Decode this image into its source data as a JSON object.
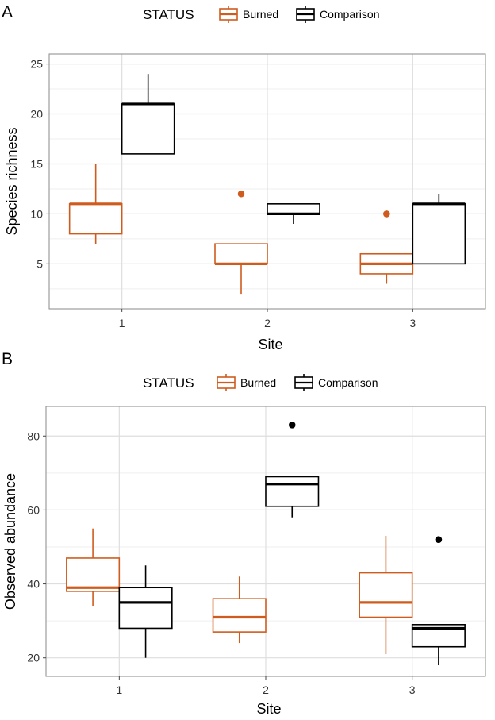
{
  "colors": {
    "burned": "#cf5c1e",
    "comparison": "#000000",
    "grid_major": "#dedede",
    "grid_minor": "#efefef",
    "border": "#8a8a8a"
  },
  "chart_data": [
    {
      "type": "box",
      "panel_label": "A",
      "legend_title": "STATUS",
      "legend_entries": [
        "Burned",
        "Comparison"
      ],
      "legend_position": "top",
      "xlabel": "Site",
      "ylabel": "Species richness",
      "categories": [
        "1",
        "2",
        "3"
      ],
      "ylim": [
        0.5,
        26
      ],
      "yticks": [
        "5",
        "10",
        "15",
        "20",
        "25"
      ],
      "series": [
        {
          "name": "Burned",
          "boxes": [
            {
              "min": 7,
              "q1": 8,
              "median": 11,
              "q3": 11,
              "max": 15,
              "outliers": []
            },
            {
              "min": 2,
              "q1": 5,
              "median": 5,
              "q3": 7,
              "max": 7,
              "outliers": [
                12
              ]
            },
            {
              "min": 3,
              "q1": 4,
              "median": 5,
              "q3": 6,
              "max": 6,
              "outliers": [
                10
              ]
            }
          ]
        },
        {
          "name": "Comparison",
          "boxes": [
            {
              "min": 16,
              "q1": 16,
              "median": 21,
              "q3": 21,
              "max": 24,
              "outliers": []
            },
            {
              "min": 9,
              "q1": 10,
              "median": 10,
              "q3": 11,
              "max": 11,
              "outliers": []
            },
            {
              "min": 5,
              "q1": 5,
              "median": 11,
              "q3": 11,
              "max": 12,
              "outliers": []
            }
          ]
        }
      ]
    },
    {
      "type": "box",
      "panel_label": "B",
      "legend_title": "STATUS",
      "legend_entries": [
        "Burned",
        "Comparison"
      ],
      "legend_position": "top",
      "xlabel": "Site",
      "ylabel": "Observed abundance",
      "categories": [
        "1",
        "2",
        "3"
      ],
      "ylim": [
        15,
        88
      ],
      "yticks": [
        "20",
        "40",
        "60",
        "80"
      ],
      "series": [
        {
          "name": "Burned",
          "boxes": [
            {
              "min": 34,
              "q1": 38,
              "median": 39,
              "q3": 47,
              "max": 55,
              "outliers": []
            },
            {
              "min": 24,
              "q1": 27,
              "median": 31,
              "q3": 36,
              "max": 42,
              "outliers": []
            },
            {
              "min": 21,
              "q1": 31,
              "median": 35,
              "q3": 43,
              "max": 53,
              "outliers": []
            }
          ]
        },
        {
          "name": "Comparison",
          "boxes": [
            {
              "min": 20,
              "q1": 28,
              "median": 35,
              "q3": 39,
              "max": 45,
              "outliers": []
            },
            {
              "min": 58,
              "q1": 61,
              "median": 67,
              "q3": 69,
              "max": 69,
              "outliers": [
                83
              ]
            },
            {
              "min": 18,
              "q1": 23,
              "median": 28,
              "q3": 29,
              "max": 29,
              "outliers": [
                52
              ]
            }
          ]
        }
      ]
    }
  ]
}
